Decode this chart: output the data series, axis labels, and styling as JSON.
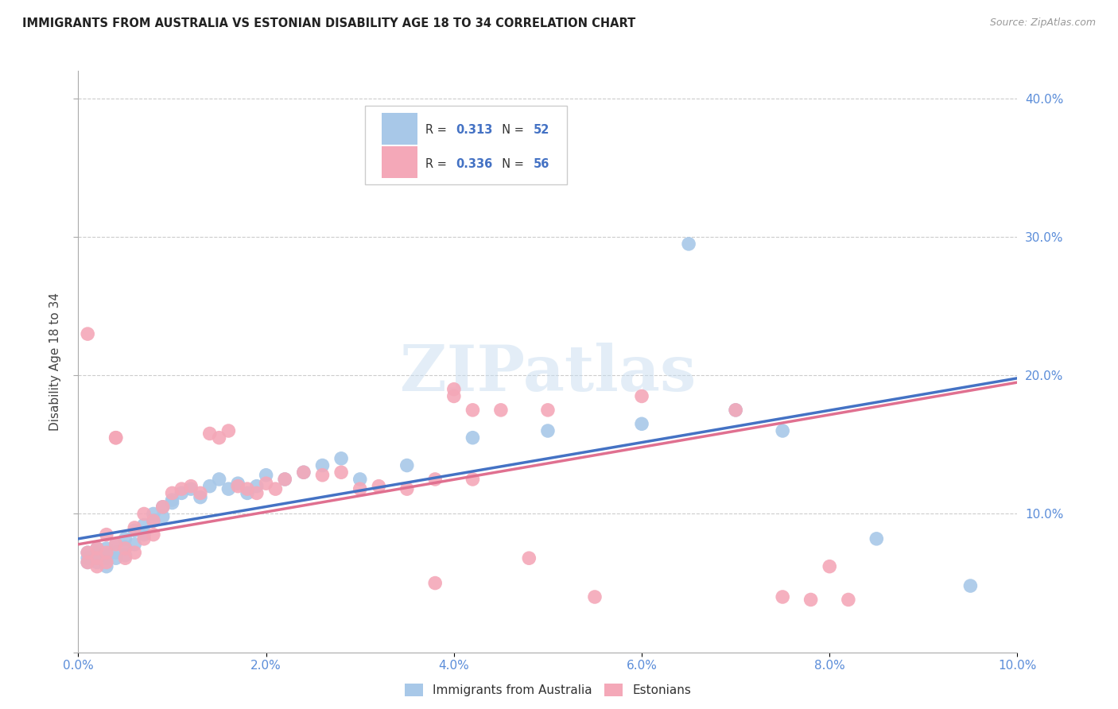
{
  "title": "IMMIGRANTS FROM AUSTRALIA VS ESTONIAN DISABILITY AGE 18 TO 34 CORRELATION CHART",
  "source": "Source: ZipAtlas.com",
  "xlabel": "",
  "ylabel": "Disability Age 18 to 34",
  "xlim": [
    0.0,
    0.1
  ],
  "ylim": [
    0.0,
    0.42
  ],
  "xticks": [
    0.0,
    0.02,
    0.04,
    0.06,
    0.08,
    0.1
  ],
  "xtick_labels": [
    "0.0%",
    "2.0%",
    "4.0%",
    "6.0%",
    "8.0%",
    "10.0%"
  ],
  "yticks": [
    0.0,
    0.1,
    0.2,
    0.3,
    0.4
  ],
  "ytick_labels_right": [
    "",
    "10.0%",
    "20.0%",
    "30.0%",
    "40.0%"
  ],
  "color_australia": "#a8c8e8",
  "color_estonia": "#f4a8b8",
  "line_color_australia": "#4472c4",
  "line_color_estonia": "#e07090",
  "r_australia": "0.313",
  "n_australia": "52",
  "r_estonia": "0.336",
  "n_estonia": "56",
  "watermark": "ZIPatlas",
  "legend_label_australia": "Immigrants from Australia",
  "legend_label_estonia": "Estonians",
  "australia_x": [
    0.001,
    0.001,
    0.001,
    0.002,
    0.002,
    0.002,
    0.002,
    0.003,
    0.003,
    0.003,
    0.003,
    0.004,
    0.004,
    0.004,
    0.005,
    0.005,
    0.005,
    0.006,
    0.006,
    0.007,
    0.007,
    0.008,
    0.008,
    0.009,
    0.009,
    0.01,
    0.01,
    0.011,
    0.012,
    0.013,
    0.014,
    0.015,
    0.016,
    0.017,
    0.018,
    0.019,
    0.02,
    0.022,
    0.024,
    0.026,
    0.028,
    0.03,
    0.035,
    0.04,
    0.042,
    0.05,
    0.06,
    0.065,
    0.07,
    0.075,
    0.085,
    0.095
  ],
  "australia_y": [
    0.072,
    0.068,
    0.065,
    0.075,
    0.068,
    0.072,
    0.065,
    0.075,
    0.07,
    0.068,
    0.062,
    0.078,
    0.072,
    0.068,
    0.082,
    0.076,
    0.07,
    0.088,
    0.078,
    0.092,
    0.085,
    0.1,
    0.095,
    0.105,
    0.098,
    0.11,
    0.108,
    0.115,
    0.118,
    0.112,
    0.12,
    0.125,
    0.118,
    0.122,
    0.115,
    0.12,
    0.128,
    0.125,
    0.13,
    0.135,
    0.14,
    0.125,
    0.135,
    0.35,
    0.155,
    0.16,
    0.165,
    0.295,
    0.175,
    0.16,
    0.082,
    0.048
  ],
  "estonia_x": [
    0.001,
    0.001,
    0.001,
    0.002,
    0.002,
    0.002,
    0.003,
    0.003,
    0.003,
    0.004,
    0.004,
    0.004,
    0.005,
    0.005,
    0.006,
    0.006,
    0.007,
    0.007,
    0.008,
    0.008,
    0.009,
    0.01,
    0.011,
    0.012,
    0.013,
    0.014,
    0.015,
    0.016,
    0.017,
    0.018,
    0.019,
    0.02,
    0.021,
    0.022,
    0.024,
    0.026,
    0.028,
    0.03,
    0.032,
    0.035,
    0.038,
    0.04,
    0.042,
    0.045,
    0.048,
    0.05,
    0.055,
    0.06,
    0.07,
    0.075,
    0.078,
    0.08,
    0.082,
    0.04,
    0.042,
    0.038
  ],
  "estonia_y": [
    0.23,
    0.072,
    0.065,
    0.075,
    0.068,
    0.062,
    0.085,
    0.072,
    0.065,
    0.078,
    0.155,
    0.155,
    0.068,
    0.075,
    0.09,
    0.072,
    0.1,
    0.082,
    0.095,
    0.085,
    0.105,
    0.115,
    0.118,
    0.12,
    0.115,
    0.158,
    0.155,
    0.16,
    0.12,
    0.118,
    0.115,
    0.122,
    0.118,
    0.125,
    0.13,
    0.128,
    0.13,
    0.118,
    0.12,
    0.118,
    0.125,
    0.19,
    0.125,
    0.175,
    0.068,
    0.175,
    0.04,
    0.185,
    0.175,
    0.04,
    0.038,
    0.062,
    0.038,
    0.185,
    0.175,
    0.05
  ]
}
